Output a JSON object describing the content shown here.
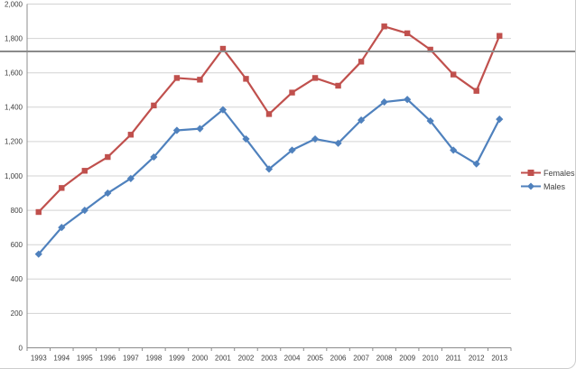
{
  "chart_data": {
    "type": "line",
    "title": "",
    "xlabel": "",
    "ylabel": "",
    "categories": [
      "1993",
      "1994",
      "1995",
      "1996",
      "1997",
      "1998",
      "1999",
      "2000",
      "2001",
      "2002",
      "2003",
      "2004",
      "2005",
      "2006",
      "2007",
      "2008",
      "2009",
      "2010",
      "2011",
      "2012",
      "2013"
    ],
    "series": [
      {
        "name": "Females",
        "color": "#C0504D",
        "marker": "square",
        "values": [
          790,
          930,
          1030,
          1110,
          1240,
          1410,
          1570,
          1560,
          1740,
          1565,
          1360,
          1485,
          1570,
          1525,
          1665,
          1870,
          1830,
          1735,
          1590,
          1495,
          1815
        ]
      },
      {
        "name": "Males",
        "color": "#4F81BD",
        "marker": "diamond",
        "values": [
          545,
          700,
          800,
          900,
          985,
          1110,
          1265,
          1275,
          1385,
          1215,
          1040,
          1150,
          1215,
          1190,
          1325,
          1430,
          1445,
          1320,
          1150,
          1070,
          1330
        ]
      }
    ],
    "ylim": [
      0,
      2000
    ],
    "y_tick_step": 200,
    "y_tick_labels": [
      "0",
      "200",
      "400",
      "600",
      "800",
      "1,000",
      "1,200",
      "1,400",
      "1,600",
      "1,800",
      "2,000"
    ],
    "grid": true,
    "legend_position": "right"
  },
  "colors": {
    "females": "#C0504D",
    "males": "#4F81BD",
    "gridline": "#D3D3D3",
    "axis": "#8C8C8C",
    "tick_text": "#3F3F3F",
    "divider": "#8A8A8A",
    "border": "#CDCDCD"
  }
}
